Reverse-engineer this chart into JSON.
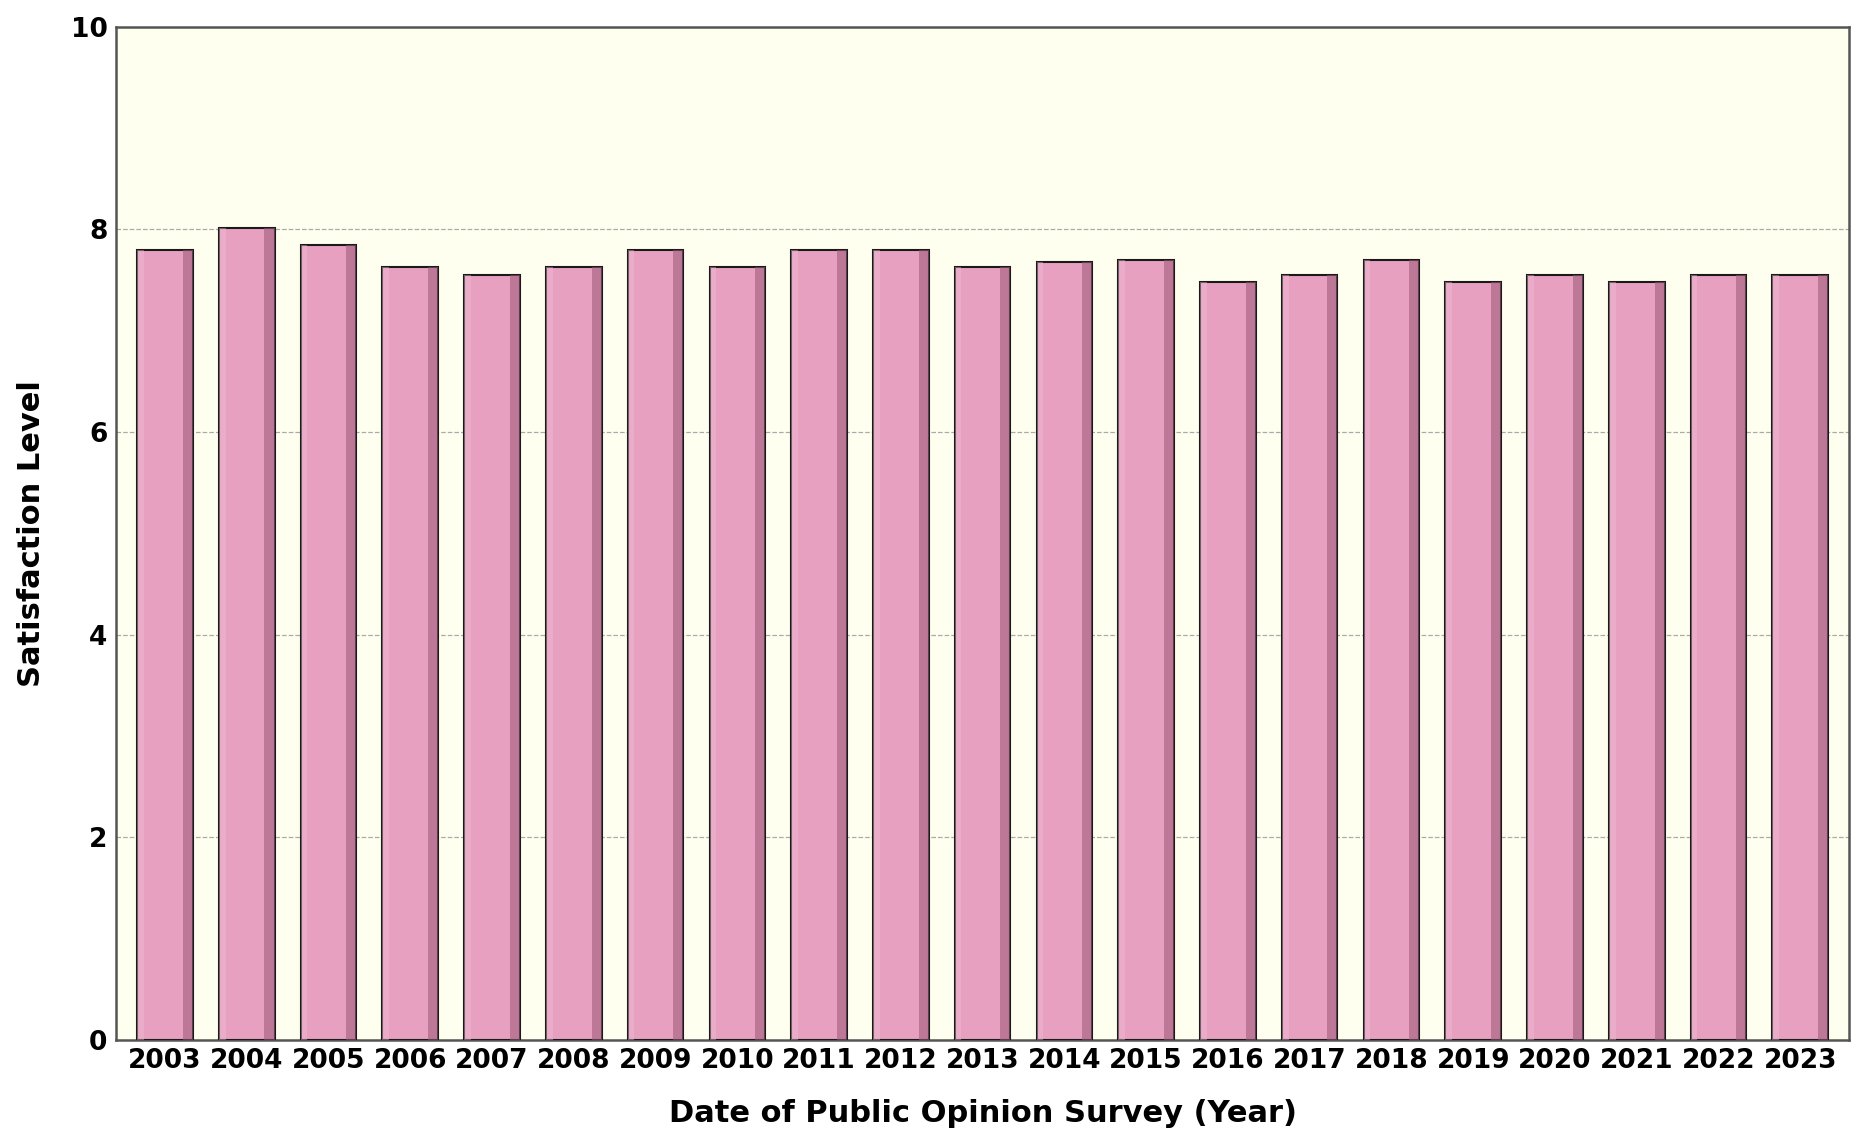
{
  "years": [
    2003,
    2004,
    2005,
    2006,
    2007,
    2008,
    2009,
    2010,
    2011,
    2012,
    2013,
    2014,
    2015,
    2016,
    2017,
    2018,
    2019,
    2020,
    2021,
    2022,
    2023
  ],
  "values": [
    7.8,
    8.01,
    7.85,
    7.63,
    7.55,
    7.63,
    7.8,
    7.63,
    7.8,
    7.8,
    7.63,
    7.68,
    7.7,
    7.48,
    7.55,
    7.7,
    7.48,
    7.55,
    7.48,
    7.55,
    7.55
  ],
  "bar_face_color": "#e8a0c0",
  "bar_edge_color": "#1a1a1a",
  "bar_shadow_color": "#9a5878",
  "bar_width": 0.68,
  "figure_bg_color": "#ffffff",
  "plot_bg_color": "#fffff0",
  "grid_color": "#aaaaaa",
  "spine_color": "#555555",
  "xlabel": "Date of Public Opinion Survey (Year)",
  "ylabel": "Satisfaction Level",
  "ylim": [
    0,
    10
  ],
  "yticks": [
    0,
    2,
    4,
    6,
    8,
    10
  ],
  "xlabel_fontsize": 22,
  "ylabel_fontsize": 22,
  "tick_fontsize": 19,
  "xlabel_fontweight": "bold",
  "ylabel_fontweight": "bold",
  "tick_fontweight": "bold"
}
